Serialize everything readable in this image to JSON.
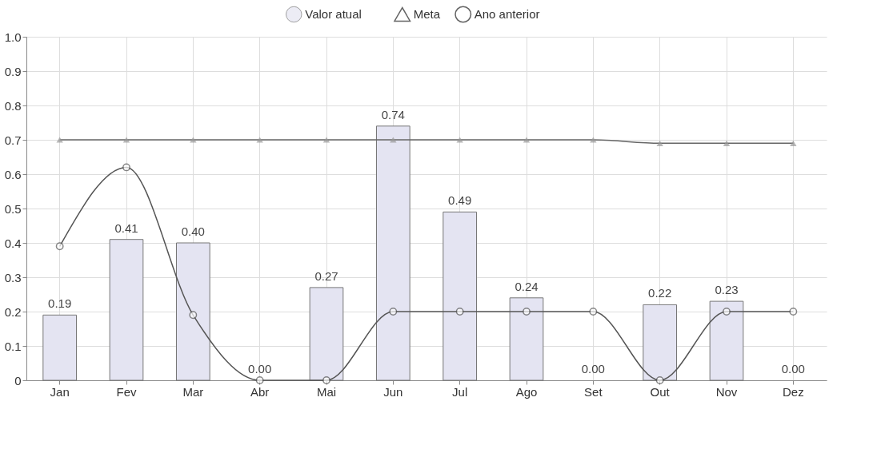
{
  "chart_data": {
    "type": "bar",
    "categories": [
      "Jan",
      "Fev",
      "Mar",
      "Abr",
      "Mai",
      "Jun",
      "Jul",
      "Ago",
      "Set",
      "Out",
      "Nov",
      "Dez"
    ],
    "series": [
      {
        "name": "Valor atual",
        "type": "bar",
        "color": "#e4e4f2",
        "values": [
          0.19,
          0.41,
          0.4,
          0.0,
          0.27,
          0.74,
          0.49,
          0.24,
          0.0,
          0.22,
          0.23,
          0.0
        ],
        "value_labels": [
          "0.19",
          "0.41",
          "0.40",
          "0.00",
          "0.27",
          "0.74",
          "0.49",
          "0.24",
          "0.00",
          "0.22",
          "0.23",
          "0.00"
        ]
      },
      {
        "name": "Meta",
        "type": "line",
        "marker": "triangle",
        "color": "#666666",
        "values": [
          0.7,
          0.7,
          0.7,
          0.7,
          0.7,
          0.7,
          0.7,
          0.7,
          0.7,
          0.69,
          0.69,
          0.69
        ]
      },
      {
        "name": "Ano anterior",
        "type": "line",
        "marker": "circle",
        "color": "#555555",
        "values": [
          0.39,
          0.62,
          0.19,
          0.0,
          0.0,
          0.2,
          0.2,
          0.2,
          0.2,
          0.0,
          0.2,
          0.2
        ]
      }
    ],
    "ylim": [
      0,
      1
    ],
    "yticks": [
      {
        "value": 0,
        "label": "0"
      },
      0.1,
      0.2,
      0.3,
      0.4,
      0.5,
      0.6,
      0.7,
      0.8,
      0.9,
      {
        "value": 1,
        "label": "1.0"
      }
    ],
    "grid": true,
    "legend": "top"
  }
}
